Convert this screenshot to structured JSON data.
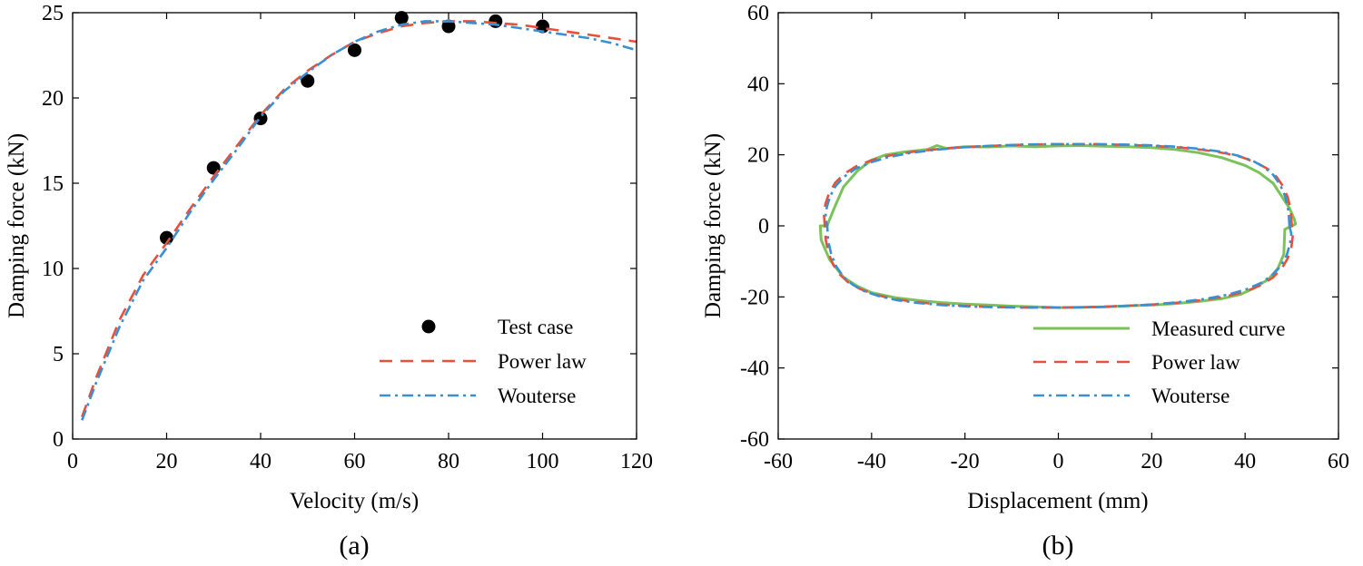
{
  "chart_data": [
    {
      "type": "line",
      "panel_label": "(a)",
      "xlabel": "Velocity (m/s)",
      "ylabel": "Damping force (kN)",
      "xlim": [
        0,
        120
      ],
      "ylim": [
        0,
        25
      ],
      "xticks": [
        "0",
        "20",
        "40",
        "60",
        "80",
        "100",
        "120"
      ],
      "yticks": [
        "0",
        "5",
        "10",
        "15",
        "20",
        "25"
      ],
      "legend_position": "bottom-right",
      "series": [
        {
          "name": "Test case",
          "style": "markers",
          "color": "#000000",
          "x": [
            20,
            30,
            40,
            50,
            60,
            70,
            80,
            90,
            100
          ],
          "y": [
            11.8,
            15.9,
            18.8,
            21.0,
            22.8,
            24.7,
            24.2,
            24.5,
            24.2
          ]
        },
        {
          "name": "Power law",
          "style": "dashed",
          "color": "#e8503a",
          "x": [
            2,
            5,
            10,
            15,
            20,
            25,
            30,
            35,
            40,
            45,
            50,
            55,
            60,
            65,
            70,
            75,
            80,
            85,
            90,
            95,
            100,
            105,
            110,
            115,
            120
          ],
          "y": [
            1.3,
            3.6,
            7.0,
            9.6,
            11.5,
            13.5,
            15.4,
            17.2,
            19.0,
            20.5,
            21.6,
            22.5,
            23.3,
            23.8,
            24.2,
            24.4,
            24.5,
            24.5,
            24.4,
            24.3,
            24.1,
            23.9,
            23.7,
            23.5,
            23.3
          ]
        },
        {
          "name": "Wouterse",
          "style": "dashdot",
          "color": "#3a8fd0",
          "x": [
            2,
            5,
            10,
            15,
            20,
            25,
            30,
            35,
            40,
            45,
            50,
            55,
            60,
            65,
            70,
            75,
            80,
            85,
            90,
            95,
            100,
            105,
            110,
            115,
            120
          ],
          "y": [
            1.1,
            3.3,
            6.6,
            9.3,
            11.2,
            13.3,
            15.2,
            17.0,
            18.9,
            20.4,
            21.5,
            22.5,
            23.3,
            23.9,
            24.3,
            24.5,
            24.5,
            24.4,
            24.3,
            24.1,
            23.9,
            23.7,
            23.5,
            23.2,
            22.8
          ]
        }
      ]
    },
    {
      "type": "line",
      "panel_label": "(b)",
      "xlabel": "Displacement (mm)",
      "ylabel": "Damping force (kN)",
      "xlim": [
        -60,
        60
      ],
      "ylim": [
        -60,
        60
      ],
      "xticks": [
        "-60",
        "-40",
        "-20",
        "0",
        "20",
        "40",
        "60"
      ],
      "yticks": [
        "-60",
        "-40",
        "-20",
        "0",
        "20",
        "40",
        "60"
      ],
      "legend_position": "bottom-right",
      "series": [
        {
          "name": "Measured curve",
          "style": "solid",
          "color": "#7cc25a",
          "x": [
            -48,
            -46,
            -43,
            -40,
            -37,
            -33,
            -28,
            -26,
            -24,
            -20,
            -15,
            -10,
            -5,
            0,
            5,
            10,
            15,
            20,
            25,
            30,
            35,
            40,
            43,
            46,
            48,
            49.5,
            50.5,
            50.8,
            48.5,
            48.3,
            47,
            45,
            42,
            39,
            35,
            30,
            25,
            20,
            15,
            10,
            5,
            0,
            -5,
            -10,
            -15,
            -20,
            -25,
            -30,
            -35,
            -40,
            -43,
            -46,
            -49,
            -50.8,
            -51,
            -49.5,
            -49.3,
            -48
          ],
          "y": [
            5,
            11,
            15.5,
            18.5,
            20,
            20.8,
            21.5,
            22.6,
            21.8,
            22.3,
            22.2,
            22.5,
            22.3,
            22.5,
            22.6,
            22.4,
            22.3,
            22,
            21.5,
            20.6,
            19.2,
            17,
            15,
            12,
            8,
            5,
            2,
            0.5,
            -1,
            -8,
            -12,
            -15,
            -17.5,
            -19.3,
            -20.5,
            -21.3,
            -21.9,
            -22.3,
            -22.5,
            -22.8,
            -22.9,
            -23,
            -22.8,
            -22.6,
            -22.3,
            -22,
            -21.6,
            -21,
            -20.2,
            -18.8,
            -17,
            -14.5,
            -9.5,
            -4,
            0,
            0,
            0.8,
            5
          ]
        },
        {
          "name": "Power law",
          "style": "dashed",
          "color": "#e8503a",
          "x": [
            50,
            49.8,
            49.2,
            48.2,
            46.8,
            45,
            42.6,
            39.6,
            35.9,
            31.5,
            26.4,
            20.7,
            14.5,
            7.8,
            0.9,
            -6.1,
            -13,
            -19.7,
            -25.9,
            -31.4,
            -36.2,
            -40.2,
            -43.4,
            -45.9,
            -47.8,
            -49.1,
            -49.9,
            -50.2,
            -50,
            -49.8,
            -49.2,
            -48.2,
            -46.8,
            -45,
            -42.6,
            -39.6,
            -35.9,
            -31.5,
            -26.4,
            -20.7,
            -14.5,
            -7.8,
            -0.9,
            6.1,
            13,
            19.7,
            25.9,
            31.4,
            36.2,
            40.2,
            43.4,
            45.9,
            47.8,
            49.1,
            49.9,
            50.2,
            50
          ],
          "y": [
            0,
            4,
            7.8,
            11,
            13.7,
            15.9,
            17.7,
            19.2,
            20.4,
            21.3,
            22,
            22.5,
            22.8,
            23,
            23,
            22.9,
            22.6,
            22.2,
            21.6,
            20.8,
            19.8,
            18.4,
            16.7,
            14.6,
            12.1,
            9.2,
            6.1,
            3,
            0,
            -4,
            -7.8,
            -11,
            -13.7,
            -15.9,
            -17.7,
            -19.2,
            -20.4,
            -21.3,
            -22,
            -22.5,
            -22.8,
            -23,
            -23,
            -22.9,
            -22.6,
            -22.2,
            -21.6,
            -20.8,
            -19.8,
            -18.4,
            -16.7,
            -14.6,
            -12.1,
            -9.2,
            -6.1,
            -3,
            0
          ]
        },
        {
          "name": "Wouterse",
          "style": "dashdot",
          "color": "#3a8fd0",
          "x": [
            49.5,
            49.3,
            48.6,
            47.5,
            46,
            44,
            41.5,
            38.4,
            34.6,
            30.1,
            25,
            19.3,
            13.1,
            6.5,
            -0.3,
            -7.2,
            -13.9,
            -20.4,
            -26.4,
            -31.8,
            -36.5,
            -40.4,
            -43.5,
            -45.9,
            -47.7,
            -48.9,
            -49.6,
            -49.9,
            -49.5,
            -49.3,
            -48.6,
            -47.5,
            -46,
            -44,
            -41.5,
            -38.4,
            -34.6,
            -30.1,
            -25,
            -19.3,
            -13.1,
            -6.5,
            0.3,
            7.2,
            13.9,
            20.4,
            26.4,
            31.8,
            36.5,
            40.4,
            43.5,
            45.9,
            47.7,
            48.9,
            49.6,
            49.9,
            49.5
          ],
          "y": [
            0,
            4.2,
            8.2,
            11.6,
            14.4,
            16.6,
            18.4,
            19.8,
            20.9,
            21.7,
            22.3,
            22.7,
            22.9,
            23,
            23,
            22.9,
            22.6,
            22.1,
            21.4,
            20.5,
            19.3,
            17.8,
            16,
            13.8,
            11.2,
            8.3,
            5.2,
            2.3,
            0,
            -4.2,
            -8.2,
            -11.6,
            -14.4,
            -16.6,
            -18.4,
            -19.8,
            -20.9,
            -21.7,
            -22.3,
            -22.7,
            -22.9,
            -23,
            -23,
            -22.9,
            -22.6,
            -22.1,
            -21.4,
            -20.5,
            -19.3,
            -17.8,
            -16,
            -13.8,
            -11.2,
            -8.3,
            -5.2,
            -2.3,
            0
          ]
        }
      ]
    }
  ]
}
